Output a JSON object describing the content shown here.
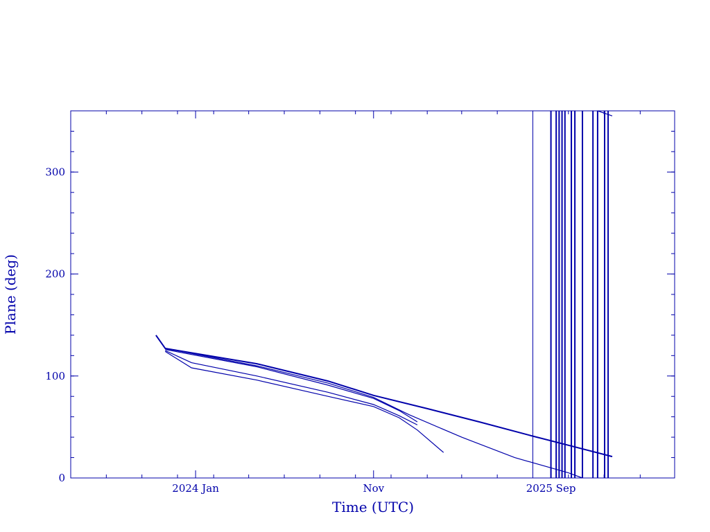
{
  "chart_data": {
    "type": "line",
    "title": "",
    "xlabel": "Time (UTC)",
    "ylabel": "Plane (deg)",
    "x_axis_kind": "date",
    "xlim": [
      "2023-06-01",
      "2026-04-01"
    ],
    "ylim": [
      0,
      360
    ],
    "x_ticks": [
      {
        "label": "2024 Jan",
        "x": "2024-01-01"
      },
      {
        "label": "Nov",
        "x": "2024-11-01"
      },
      {
        "label": "2025 Sep",
        "x": "2025-09-01"
      }
    ],
    "y_ticks": [
      {
        "label": "0",
        "y": 0
      },
      {
        "label": "100",
        "y": 100
      },
      {
        "label": "200",
        "y": 200
      },
      {
        "label": "300",
        "y": 300
      }
    ],
    "grid": false,
    "color": "#0000aa",
    "series": [
      {
        "points": [
          [
            "2023-10-25",
            140
          ],
          [
            "2023-11-10",
            127
          ],
          [
            "2024-04-15",
            112
          ],
          [
            "2024-08-15",
            95
          ],
          [
            "2024-11-01",
            81
          ],
          [
            "2025-02-01",
            68
          ],
          [
            "2025-05-01",
            55
          ],
          [
            "2025-08-01",
            41
          ],
          [
            "2025-10-15",
            30
          ],
          [
            "2025-12-15",
            21
          ]
        ]
      },
      {
        "points": [
          [
            "2023-11-10",
            127
          ],
          [
            "2024-04-15",
            110
          ],
          [
            "2024-08-15",
            93
          ],
          [
            "2024-11-01",
            79
          ],
          [
            "2025-01-01",
            62
          ],
          [
            "2025-04-01",
            40
          ],
          [
            "2025-07-01",
            20
          ],
          [
            "2025-10-01",
            5
          ],
          [
            "2025-10-25",
            0
          ]
        ]
      },
      {
        "points": [
          [
            "2023-11-10",
            126
          ],
          [
            "2024-04-15",
            109
          ],
          [
            "2024-08-15",
            91
          ],
          [
            "2024-11-01",
            78
          ],
          [
            "2024-12-15",
            66
          ],
          [
            "2025-01-15",
            55
          ]
        ]
      },
      {
        "points": [
          [
            "2023-11-10",
            125
          ],
          [
            "2023-12-25",
            113
          ],
          [
            "2024-04-15",
            100
          ],
          [
            "2024-08-15",
            84
          ],
          [
            "2024-11-01",
            72
          ],
          [
            "2024-12-15",
            61
          ],
          [
            "2025-01-15",
            52
          ]
        ]
      },
      {
        "points": [
          [
            "2023-11-10",
            124
          ],
          [
            "2023-12-25",
            108
          ],
          [
            "2024-04-15",
            96
          ],
          [
            "2024-08-15",
            80
          ],
          [
            "2024-11-01",
            70
          ],
          [
            "2024-12-15",
            59
          ],
          [
            "2025-01-15",
            47
          ],
          [
            "2025-03-01",
            25
          ]
        ]
      }
    ],
    "vertical_lines": [
      "2025-08-01",
      "2025-09-01",
      "2025-09-10",
      "2025-09-15",
      "2025-09-20",
      "2025-09-25",
      "2025-10-06",
      "2025-10-12",
      "2025-10-25",
      "2025-11-12",
      "2025-11-20",
      "2025-12-02",
      "2025-12-08"
    ],
    "short_segment": {
      "points": [
        [
          "2025-11-20",
          360
        ],
        [
          "2025-12-15",
          355
        ]
      ]
    }
  }
}
